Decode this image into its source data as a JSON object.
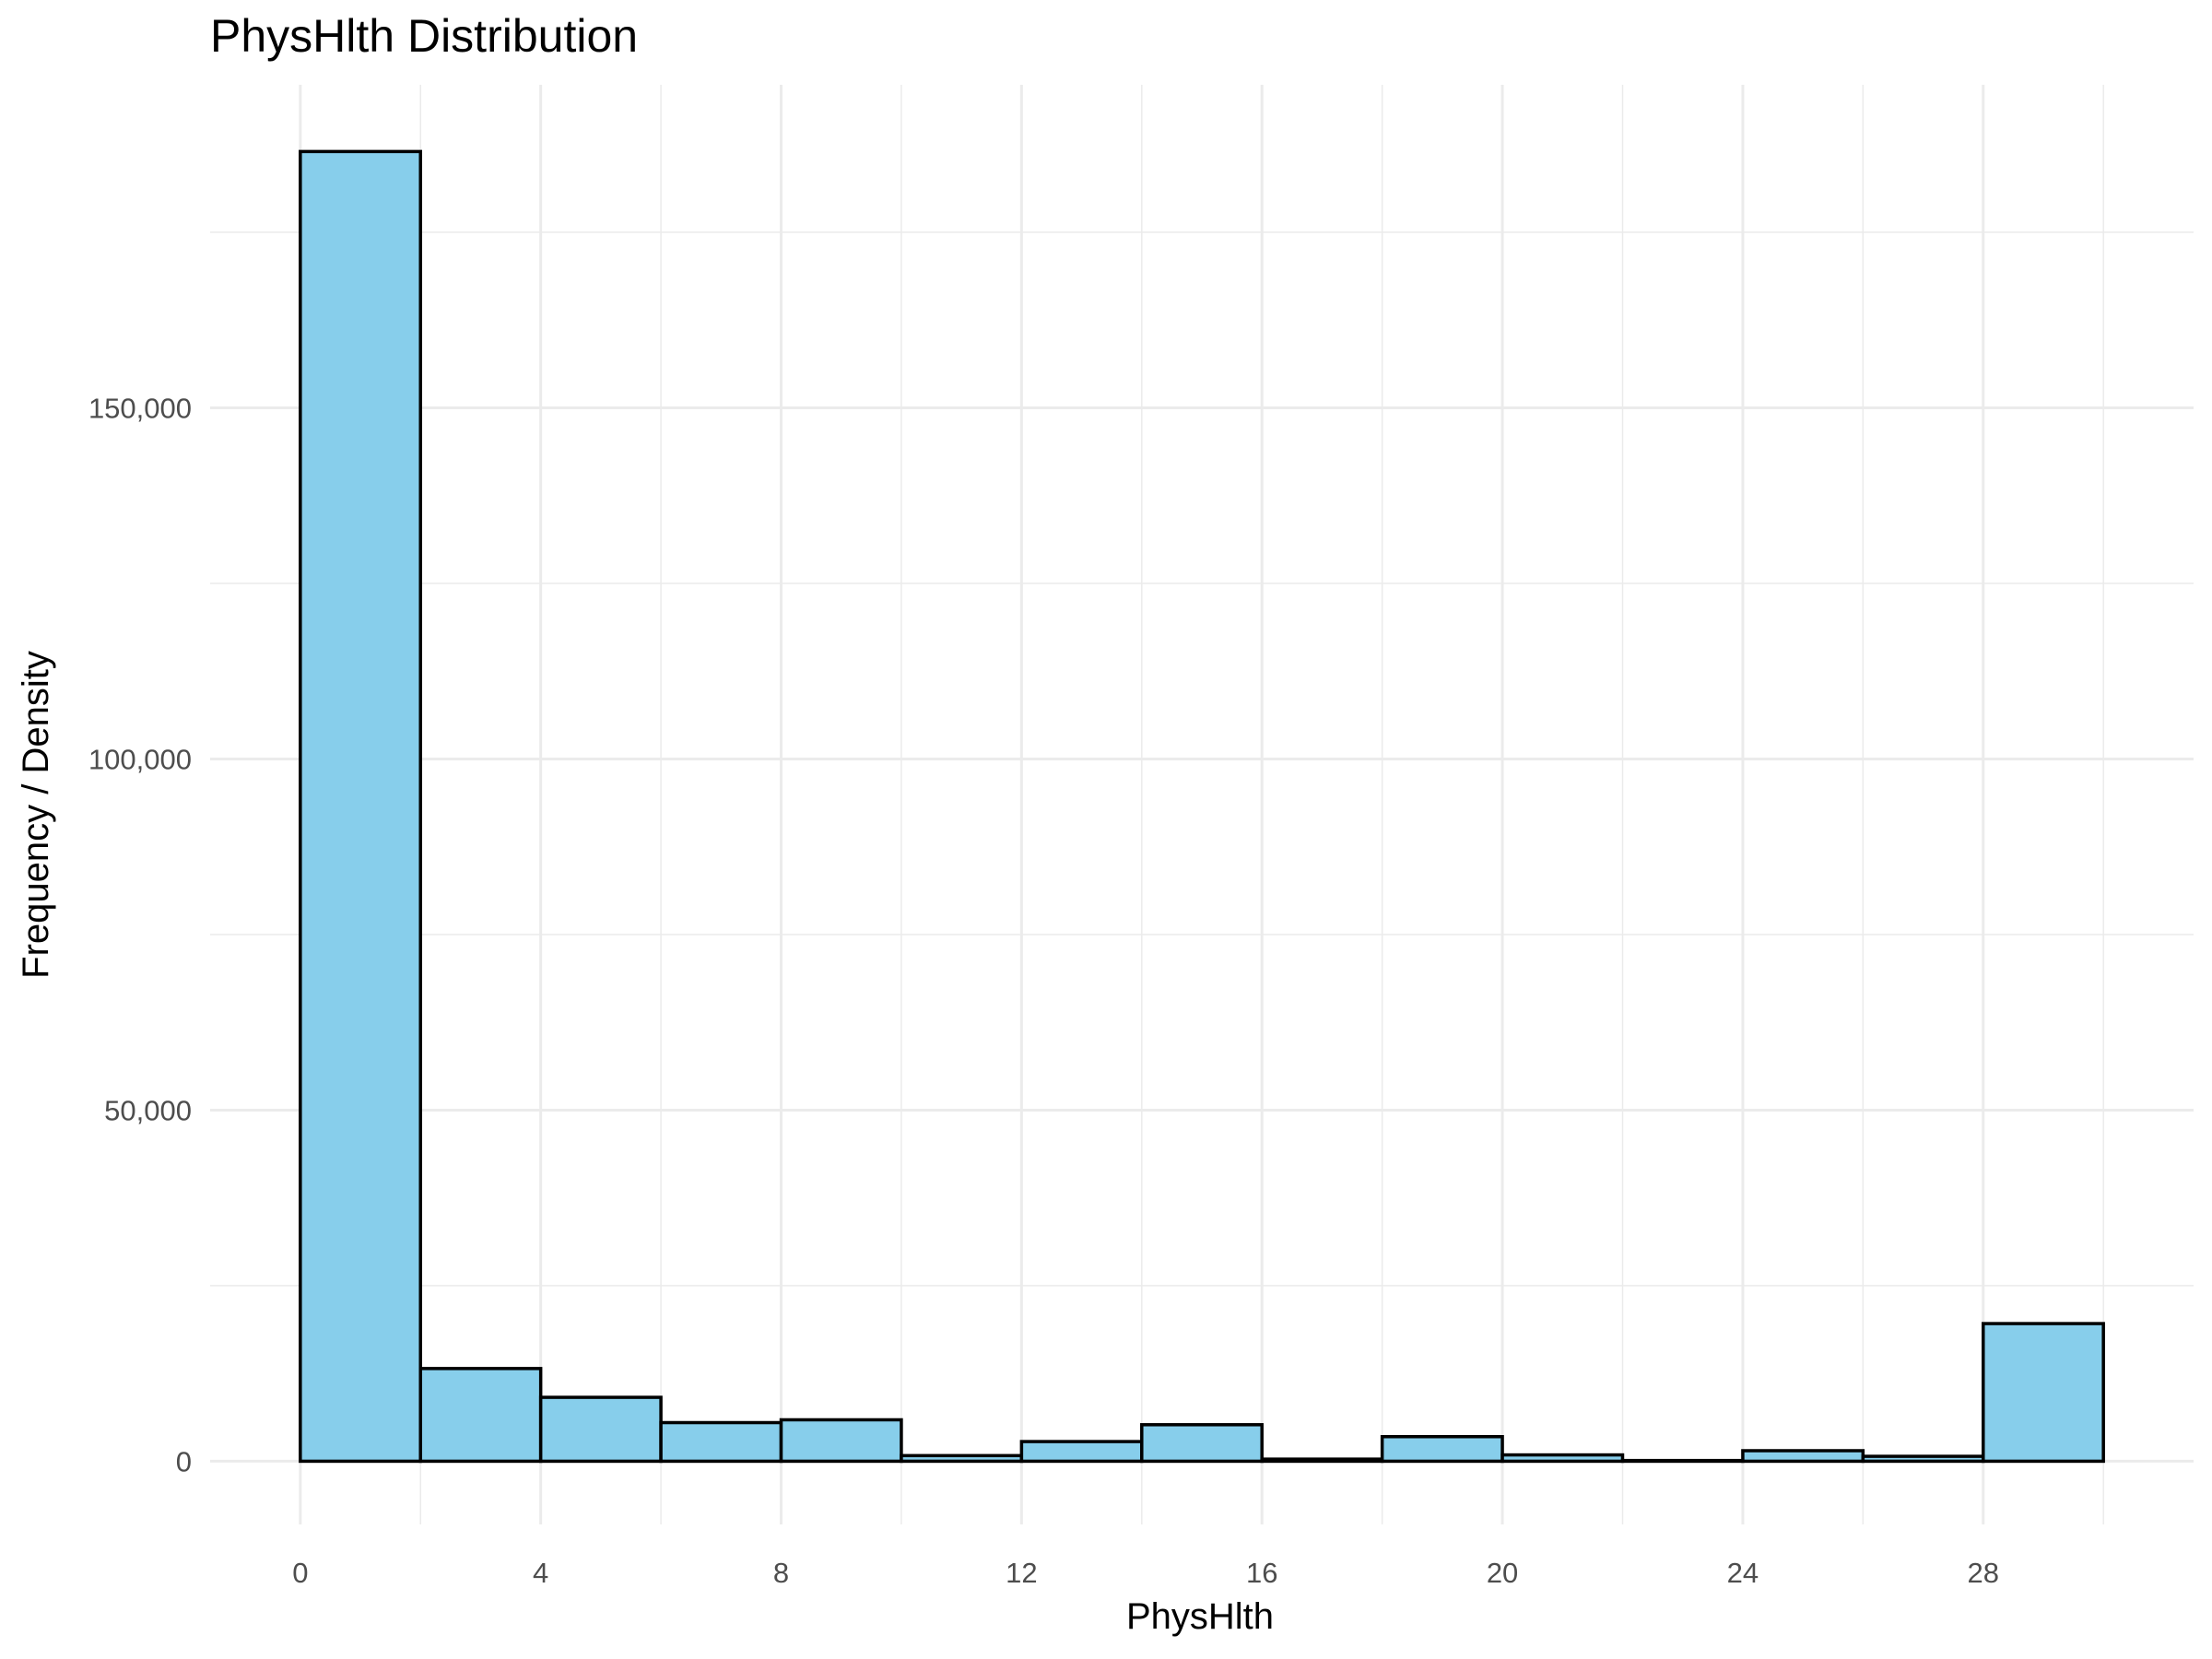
{
  "chart_data": {
    "type": "bar",
    "title": "PhysHlth Distribution",
    "xlabel": "PhysHlth",
    "ylabel": "Frequency / Density",
    "bin_width": 2,
    "bins": [
      {
        "start": 0,
        "end": 2,
        "count": 186500
      },
      {
        "start": 2,
        "end": 4,
        "count": 13200
      },
      {
        "start": 4,
        "end": 6,
        "count": 9100
      },
      {
        "start": 6,
        "end": 8,
        "count": 5500
      },
      {
        "start": 8,
        "end": 10,
        "count": 5900
      },
      {
        "start": 10,
        "end": 12,
        "count": 800
      },
      {
        "start": 12,
        "end": 14,
        "count": 2800
      },
      {
        "start": 14,
        "end": 16,
        "count": 5200
      },
      {
        "start": 16,
        "end": 18,
        "count": 300
      },
      {
        "start": 18,
        "end": 20,
        "count": 3500
      },
      {
        "start": 20,
        "end": 22,
        "count": 900
      },
      {
        "start": 22,
        "end": 24,
        "count": 100
      },
      {
        "start": 24,
        "end": 26,
        "count": 1500
      },
      {
        "start": 26,
        "end": 28,
        "count": 700
      },
      {
        "start": 28,
        "end": 30,
        "count": 19600
      }
    ],
    "xlim": [
      -1.5,
      31.5
    ],
    "ylim": [
      -9000,
      196000
    ],
    "x_ticks": [
      0,
      4,
      8,
      12,
      16,
      20,
      24,
      28
    ],
    "x_tick_labels": [
      "0",
      "4",
      "8",
      "12",
      "16",
      "20",
      "24",
      "28"
    ],
    "y_ticks": [
      0,
      50000,
      100000,
      150000
    ],
    "y_tick_labels": [
      "0",
      "50,000",
      "100,000",
      "150,000"
    ],
    "grid": true,
    "colors": {
      "fill": "#87CEEB",
      "outline": "#000000",
      "grid": "#ebebeb"
    }
  }
}
